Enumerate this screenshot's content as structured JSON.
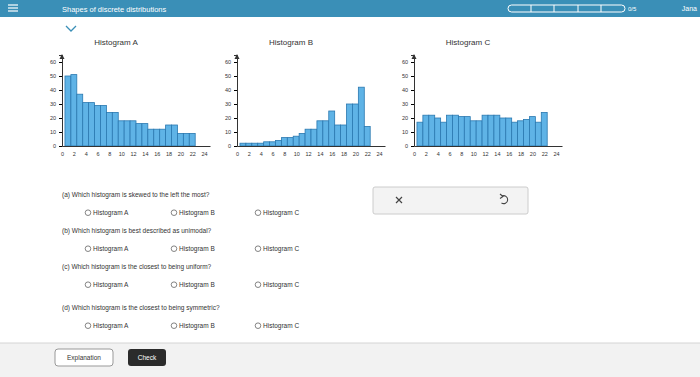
{
  "header": {
    "title": "Shapes of discrete distributions",
    "progress": "0/5",
    "user": "Jana"
  },
  "chart_data": [
    {
      "type": "histogram",
      "title": "Histogram A",
      "color": "#5fb3e6",
      "bins": [
        0.5,
        1.5,
        2.5,
        3.5,
        4.5,
        5.5,
        6.5,
        7.5,
        8.5,
        9.5,
        10.5,
        11.5,
        12.5,
        13.5,
        14.5,
        15.5,
        16.5,
        17.5,
        18.5,
        19.5,
        20.5,
        21.5,
        22.5
      ],
      "values": [
        50,
        51,
        37,
        31,
        31,
        29,
        29,
        24,
        24,
        18,
        18,
        18,
        16,
        16,
        12,
        12,
        12,
        15,
        15,
        9,
        9,
        9
      ],
      "xlim": [
        0,
        25
      ],
      "xticks": [
        0,
        2,
        4,
        6,
        8,
        10,
        12,
        14,
        16,
        18,
        20,
        22,
        24
      ],
      "ylim": [
        0,
        65
      ],
      "yticks": [
        0,
        10,
        20,
        30,
        40,
        50,
        60
      ]
    },
    {
      "type": "histogram",
      "title": "Histogram B",
      "color": "#5fb3e6",
      "bins": [
        0.5,
        1.5,
        2.5,
        3.5,
        4.5,
        5.5,
        6.5,
        7.5,
        8.5,
        9.5,
        10.5,
        11.5,
        12.5,
        13.5,
        14.5,
        15.5,
        16.5,
        17.5,
        18.5,
        19.5,
        20.5,
        21.5,
        22.5
      ],
      "values": [
        2,
        2,
        2,
        2,
        3,
        3,
        4,
        6,
        6,
        7,
        9,
        12,
        12,
        18,
        18,
        25,
        15,
        15,
        30,
        30,
        42,
        14
      ],
      "xlim": [
        0,
        25
      ],
      "xticks": [
        0,
        2,
        4,
        6,
        8,
        10,
        12,
        14,
        16,
        18,
        20,
        22,
        24
      ],
      "ylim": [
        0,
        65
      ],
      "yticks": [
        0,
        10,
        20,
        30,
        40,
        50,
        60
      ]
    },
    {
      "type": "histogram",
      "title": "Histogram C",
      "color": "#5fb3e6",
      "bins": [
        0.5,
        1.5,
        2.5,
        3.5,
        4.5,
        5.5,
        6.5,
        7.5,
        8.5,
        9.5,
        10.5,
        11.5,
        12.5,
        13.5,
        14.5,
        15.5,
        16.5,
        17.5,
        18.5,
        19.5,
        20.5,
        21.5,
        22.5
      ],
      "values": [
        17,
        22,
        22,
        20,
        17,
        22,
        22,
        21,
        21,
        18,
        18,
        22,
        22,
        22,
        20,
        20,
        17,
        18,
        19,
        21,
        17,
        24
      ],
      "xlim": [
        0,
        25
      ],
      "xticks": [
        0,
        2,
        4,
        6,
        8,
        10,
        12,
        14,
        16,
        18,
        20,
        22,
        24
      ],
      "ylim": [
        0,
        65
      ],
      "yticks": [
        0,
        10,
        20,
        30,
        40,
        50,
        60
      ]
    }
  ],
  "questions": [
    {
      "prompt": "(a) Which histogram is skewed to the left the most?",
      "options": [
        "Histogram A",
        "Histogram B",
        "Histogram C"
      ]
    },
    {
      "prompt": "(b) Which histogram is best described as unimodal?",
      "options": [
        "Histogram A",
        "Histogram B",
        "Histogram C"
      ]
    },
    {
      "prompt": "(c) Which histogram is the closest to being uniform?",
      "options": [
        "Histogram A",
        "Histogram B",
        "Histogram C"
      ]
    },
    {
      "prompt": "(d) Which histogram is the closest to being symmetric?",
      "options": [
        "Histogram A",
        "Histogram B",
        "Histogram C"
      ]
    }
  ],
  "buttons": {
    "explanation": "Explanation",
    "check": "Check"
  }
}
